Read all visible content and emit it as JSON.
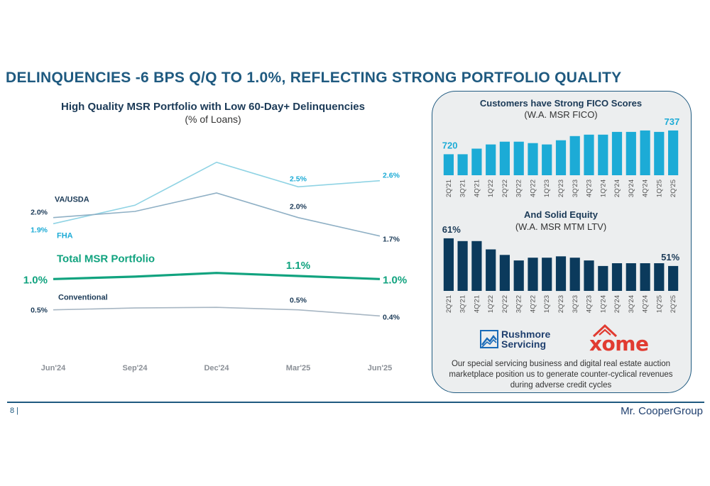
{
  "title": "DELINQUENCIES -6 BPS Q/Q TO 1.0%, REFLECTING STRONG PORTFOLIO QUALITY",
  "left_chart_title": "High Quality MSR Portfolio with Low 60-Day+ Delinquencies",
  "left_chart_subtitle": "(% of Loans)",
  "fico_title": "Customers have Strong FICO Scores",
  "fico_subtitle": "(W.A. MSR FICO)",
  "ltv_title": "And Solid Equity",
  "ltv_subtitle": "(W.A. MSR MTM LTV)",
  "rushmore_text_1": "Rushmore",
  "rushmore_text_2": "Servicing",
  "xome_text": "xome",
  "panel_note": "Our special servicing business and digital real estate auction marketplace position us to generate counter-cyclical revenues during adverse credit cycles",
  "page_number": "8  |",
  "brand": "Mr. CooperGroup",
  "colors": {
    "title": "#1f5a80",
    "fha": "#8fd3e4",
    "va": "#8fb0c5",
    "total": "#11a37f",
    "conventional": "#a7b6c3",
    "fico_bar": "#1cabd6",
    "ltv_bar": "#0b3a5c",
    "xome": "#e13b31"
  },
  "chart_data": [
    {
      "type": "line",
      "categories": [
        "Jun'24",
        "Sep'24",
        "Dec'24",
        "Mar'25",
        "Jun'25"
      ],
      "series": [
        {
          "name": "FHA",
          "values": [
            1.9,
            2.2,
            2.9,
            2.5,
            2.6
          ],
          "labels": {
            "0": "1.9%",
            "3": "2.5%",
            "4": "2.6%"
          }
        },
        {
          "name": "VA/USDA",
          "values": [
            2.0,
            2.1,
            2.4,
            2.0,
            1.7
          ],
          "labels": {
            "0": "2.0%",
            "3": "2.0%",
            "4": "1.7%"
          }
        },
        {
          "name": "Total MSR Portfolio",
          "values": [
            1.0,
            1.04,
            1.1,
            1.05,
            1.0
          ],
          "labels": {
            "0": "1.0%",
            "3": "1.1%",
            "4": "1.0%"
          }
        },
        {
          "name": "Conventional",
          "values": [
            0.5,
            0.53,
            0.54,
            0.5,
            0.4
          ],
          "labels": {
            "0": "0.5%",
            "3": "0.5%",
            "4": "0.4%"
          }
        }
      ]
    },
    {
      "type": "bar",
      "title": "Customers have Strong FICO Scores",
      "subtitle": "(W.A. MSR FICO)",
      "categories": [
        "2Q'21",
        "3Q'21",
        "4Q'21",
        "1Q'22",
        "2Q'22",
        "3Q'22",
        "4Q'22",
        "1Q'23",
        "2Q'23",
        "3Q'23",
        "4Q'23",
        "1Q'24",
        "2Q'24",
        "3Q'24",
        "4Q'24",
        "1Q'25",
        "2Q'25"
      ],
      "values": [
        720,
        720,
        724,
        727,
        729,
        729,
        728,
        727,
        730,
        733,
        734,
        734,
        736,
        736,
        737,
        736,
        737
      ],
      "data_labels": {
        "first": "720",
        "last": "737"
      },
      "ylim": [
        705,
        740
      ]
    },
    {
      "type": "bar",
      "title": "And Solid Equity",
      "subtitle": "(W.A. MSR MTM LTV)",
      "categories": [
        "2Q'21",
        "3Q'21",
        "4Q'21",
        "1Q'22",
        "2Q'22",
        "3Q'22",
        "4Q'22",
        "1Q'23",
        "2Q'23",
        "3Q'23",
        "4Q'23",
        "1Q'24",
        "2Q'24",
        "3Q'24",
        "4Q'24",
        "1Q'25",
        "2Q'25"
      ],
      "values": [
        61,
        60,
        60,
        57,
        55,
        53,
        54,
        54,
        54.5,
        54,
        53,
        51,
        52,
        52,
        52,
        52,
        51
      ],
      "data_labels": {
        "first": "61%",
        "last": "51%"
      },
      "ylim": [
        42,
        62
      ]
    }
  ]
}
